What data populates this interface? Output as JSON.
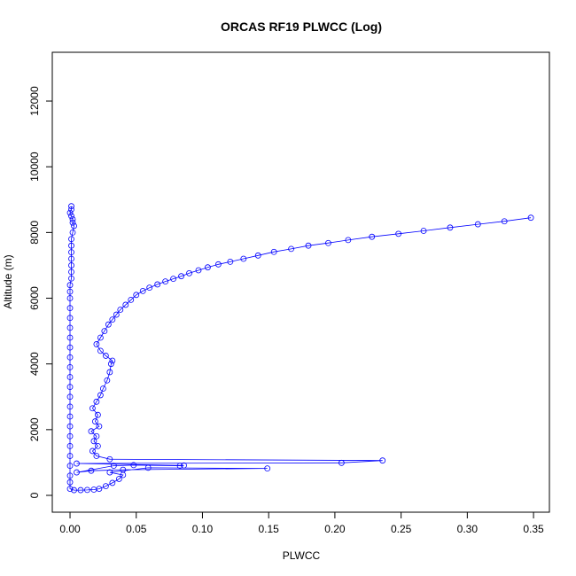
{
  "chart_data": {
    "type": "line",
    "title": "ORCAS RF19 PLWCC (Log)",
    "x_label": "PLWCC",
    "y_label": "Altitude (m)",
    "xlim": [
      -0.0134,
      0.362
    ],
    "ylim": [
      -512,
      13484
    ],
    "xticks": [
      {
        "value": 0,
        "label": "0.00"
      },
      {
        "value": 0.05,
        "label": "0.05"
      },
      {
        "value": 0.1,
        "label": "0.10"
      },
      {
        "value": 0.15,
        "label": "0.15"
      },
      {
        "value": 0.2,
        "label": "0.20"
      },
      {
        "value": 0.25,
        "label": "0.25"
      },
      {
        "value": 0.3,
        "label": "0.30"
      },
      {
        "value": 0.35,
        "label": "0.35"
      }
    ],
    "yticks": [
      0,
      2000,
      4000,
      6000,
      8000,
      10000,
      12000
    ],
    "series": [
      {
        "color": "#0000ff",
        "x": [
          0.001,
          0.001,
          0.0,
          0.001,
          0.002,
          0.002,
          0.003,
          0.002,
          0.001,
          0.001,
          0.001,
          0.001,
          0.001,
          0.001,
          0.001,
          0.0,
          0.0,
          0.0,
          0.0,
          0.0,
          0.0,
          0.0,
          0.0,
          0.0,
          0.0,
          0.0,
          0.0,
          0.0,
          0.0,
          0.0,
          0.0,
          0.0,
          0.0,
          0.0,
          0.0,
          0.0,
          0.0,
          0.0,
          0.003,
          0.008,
          0.013,
          0.018,
          0.022,
          0.027,
          0.032,
          0.037,
          0.04,
          0.03,
          0.059,
          0.149,
          0.04,
          0.016,
          0.005,
          0.033,
          0.048,
          0.083,
          0.086,
          0.005,
          0.205,
          0.236,
          0.03,
          0.02,
          0.017,
          0.021,
          0.018,
          0.02,
          0.016,
          0.022,
          0.019,
          0.021,
          0.017,
          0.02,
          0.023,
          0.025,
          0.028,
          0.03,
          0.031,
          0.032,
          0.027,
          0.023,
          0.02,
          0.023,
          0.026,
          0.029,
          0.032,
          0.035,
          0.038,
          0.042,
          0.046,
          0.05,
          0.055,
          0.06,
          0.066,
          0.072,
          0.078,
          0.084,
          0.09,
          0.097,
          0.104,
          0.112,
          0.121,
          0.131,
          0.142,
          0.154,
          0.167,
          0.18,
          0.195,
          0.21,
          0.228,
          0.248,
          0.267,
          0.287,
          0.308,
          0.328,
          0.348
        ],
        "values": [
          8800,
          8700,
          8600,
          8500,
          8400,
          8300,
          8200,
          8000,
          7800,
          7600,
          7400,
          7200,
          7000,
          6800,
          6600,
          6400,
          6200,
          6000,
          5700,
          5400,
          5100,
          4800,
          4500,
          4200,
          3900,
          3600,
          3300,
          3000,
          2700,
          2400,
          2100,
          1800,
          1500,
          1200,
          900,
          600,
          400,
          200,
          160,
          160,
          165,
          175,
          200,
          280,
          380,
          500,
          620,
          700,
          840,
          820,
          780,
          750,
          700,
          900,
          920,
          900,
          910,
          970,
          990,
          1060,
          1100,
          1200,
          1350,
          1500,
          1650,
          1800,
          1950,
          2100,
          2250,
          2450,
          2650,
          2850,
          3050,
          3250,
          3500,
          3750,
          4000,
          4100,
          4250,
          4400,
          4600,
          4800,
          5000,
          5200,
          5350,
          5500,
          5650,
          5800,
          5950,
          6100,
          6220,
          6320,
          6420,
          6510,
          6590,
          6670,
          6760,
          6850,
          6940,
          7030,
          7110,
          7200,
          7300,
          7410,
          7500,
          7600,
          7680,
          7770,
          7870,
          7960,
          8050,
          8150,
          8250,
          8340,
          8450
        ]
      }
    ]
  }
}
